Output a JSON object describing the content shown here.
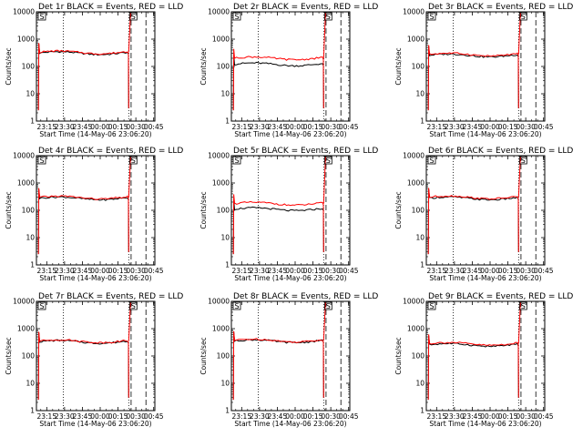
{
  "chart_data": {
    "type": "line",
    "layout": "3x3 grid of panels",
    "legend_text": "BLACK = Events, RED = LLD",
    "ylabel": "Counts/sec",
    "xlabel": "Start Time (14-May-06 23:06:20)",
    "x_tick_labels": [
      "23:15",
      "23:30",
      "23:45",
      "00:00",
      "00:15",
      "00:30",
      "00:45"
    ],
    "x_tick_minutes": [
      15,
      30,
      45,
      60,
      75,
      90,
      105
    ],
    "xlim_minutes": [
      6.33,
      106
    ],
    "y_scale": "log",
    "ylim": [
      1,
      10000
    ],
    "y_tick_values": [
      1,
      10,
      100,
      1000,
      10000
    ],
    "y_tick_labels": [
      "1",
      "10",
      "100",
      "1000",
      "10000"
    ],
    "flag_markers": [
      "S"
    ],
    "colors": {
      "events": "#000000",
      "lld": "#ff0000"
    },
    "panels": [
      {
        "title": "Det 1r BLACK = Events, RED = LLD",
        "flag": "S",
        "saa_start": 8.0,
        "saa_end": 84.0,
        "dotted_lines": [
          29.0,
          84.0
        ],
        "dashed_lines": [
          86.0,
          98.5
        ],
        "points": 45,
        "events_level": 310,
        "lld_level": 330
      },
      {
        "title": "Det 2r BLACK = Events, RED = LLD",
        "flag": "S",
        "saa_start": 8.0,
        "saa_end": 84.0,
        "dotted_lines": [
          29.0,
          84.0
        ],
        "dashed_lines": [
          86.0,
          98.5
        ],
        "points": 45,
        "events_level": 120,
        "lld_level": 200
      },
      {
        "title": "Det 3r BLACK = Events, RED = LLD",
        "flag": "S",
        "saa_start": 8.0,
        "saa_end": 84.0,
        "dotted_lines": [
          29.0,
          84.0
        ],
        "dashed_lines": [
          86.0,
          98.5
        ],
        "points": 45,
        "events_level": 255,
        "lld_level": 275
      },
      {
        "title": "Det 4r BLACK = Events, RED = LLD",
        "flag": "S",
        "saa_start": 8.0,
        "saa_end": 84.0,
        "dotted_lines": [
          29.0,
          84.0
        ],
        "dashed_lines": [
          86.0,
          98.5
        ],
        "points": 45,
        "events_level": 275,
        "lld_level": 295
      },
      {
        "title": "Det 5r BLACK = Events, RED = LLD",
        "flag": "S",
        "saa_start": 8.0,
        "saa_end": 84.0,
        "dotted_lines": [
          29.0,
          84.0
        ],
        "dashed_lines": [
          86.0,
          98.5
        ],
        "points": 45,
        "events_level": 110,
        "lld_level": 175
      },
      {
        "title": "Det 6r BLACK = Events, RED = LLD",
        "flag": "S",
        "saa_start": 8.0,
        "saa_end": 84.0,
        "dotted_lines": [
          29.0,
          84.0
        ],
        "dashed_lines": [
          86.0,
          98.5
        ],
        "points": 45,
        "events_level": 275,
        "lld_level": 300
      },
      {
        "title": "Det 7r BLACK = Events, RED = LLD",
        "flag": "S",
        "saa_start": 8.0,
        "saa_end": 84.0,
        "dotted_lines": [
          29.0,
          84.0
        ],
        "dashed_lines": [
          86.0,
          98.5
        ],
        "points": 45,
        "events_level": 330,
        "lld_level": 350
      },
      {
        "title": "Det 8r BLACK = Events, RED = LLD",
        "flag": "S",
        "saa_start": 8.0,
        "saa_end": 84.0,
        "dotted_lines": [
          29.0,
          84.0
        ],
        "dashed_lines": [
          86.0,
          98.5
        ],
        "points": 45,
        "events_level": 350,
        "lld_level": 370
      },
      {
        "title": "Det 9r BLACK = Events, RED = LLD",
        "flag": "S",
        "saa_start": 8.0,
        "saa_end": 84.0,
        "dotted_lines": [
          29.0,
          84.0
        ],
        "dashed_lines": [
          86.0,
          98.5
        ],
        "points": 45,
        "events_level": 255,
        "lld_level": 280
      }
    ]
  }
}
